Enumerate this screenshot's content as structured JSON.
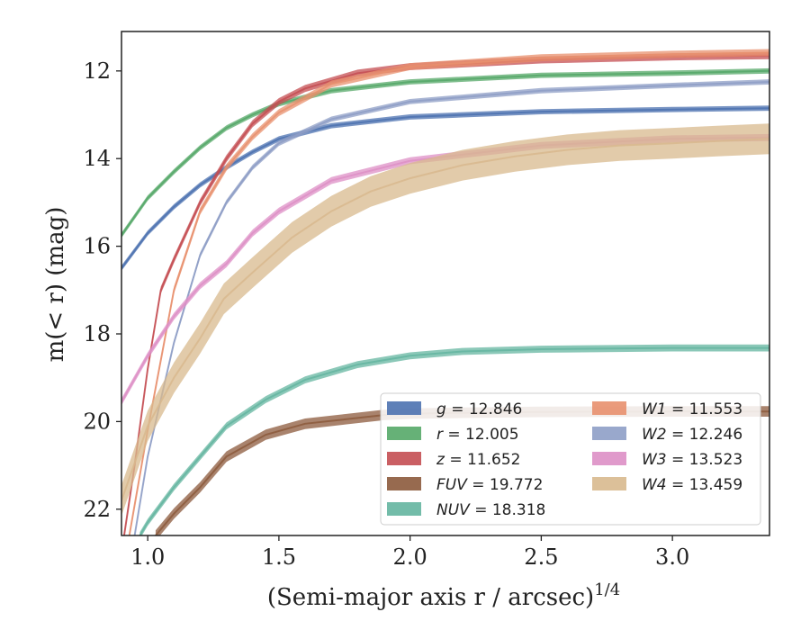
{
  "chart_data": {
    "type": "line",
    "title": "",
    "xlabel": "(Semi-major axis r / arcsec)",
    "xlabel_sup": "1/4",
    "ylabel": "m(< r) (mag)",
    "xlim": [
      0.9,
      3.37
    ],
    "ylim": [
      22.6,
      11.1
    ],
    "y_inverted": true,
    "xticks": [
      1.0,
      1.5,
      2.0,
      2.5,
      3.0
    ],
    "xtick_labels": [
      "1.0",
      "1.5",
      "2.0",
      "2.5",
      "3.0"
    ],
    "yticks": [
      12,
      14,
      16,
      18,
      20,
      22
    ],
    "ytick_labels": [
      "12",
      "14",
      "16",
      "18",
      "20",
      "22"
    ],
    "grid": false,
    "legend_placement": "lower-right",
    "series": [
      {
        "name": "g",
        "label_value": "12.846",
        "color": "#4c72b0",
        "band_width": 0.06,
        "x": [
          0.9,
          1.0,
          1.1,
          1.2,
          1.3,
          1.4,
          1.5,
          1.7,
          2.0,
          2.5,
          3.0,
          3.37
        ],
        "y": [
          16.5,
          15.7,
          15.1,
          14.6,
          14.2,
          13.85,
          13.55,
          13.25,
          13.05,
          12.93,
          12.88,
          12.85
        ]
      },
      {
        "name": "r",
        "label_value": "12.005",
        "color": "#55a868",
        "band_width": 0.06,
        "x": [
          0.9,
          1.0,
          1.1,
          1.2,
          1.3,
          1.4,
          1.5,
          1.7,
          2.0,
          2.5,
          3.0,
          3.37
        ],
        "y": [
          15.75,
          14.9,
          14.3,
          13.75,
          13.3,
          13.0,
          12.75,
          12.45,
          12.25,
          12.1,
          12.05,
          12.0
        ]
      },
      {
        "name": "z",
        "label_value": "11.652",
        "color": "#c44e52",
        "band_width": 0.08,
        "x": [
          0.9,
          0.95,
          1.0,
          1.05,
          1.1,
          1.2,
          1.3,
          1.4,
          1.5,
          1.6,
          1.8,
          2.0,
          2.5,
          3.0,
          3.37
        ],
        "y": [
          23.0,
          21.0,
          18.8,
          17.0,
          16.3,
          15.0,
          14.0,
          13.2,
          12.7,
          12.4,
          12.05,
          11.9,
          11.75,
          11.68,
          11.65
        ]
      },
      {
        "name": "FUV",
        "label_value": "19.772",
        "color": "#8c5a3c",
        "band_width": 0.12,
        "x": [
          1.03,
          1.1,
          1.2,
          1.3,
          1.45,
          1.6,
          1.75,
          1.9,
          2.0,
          2.2,
          2.5,
          3.0,
          3.37
        ],
        "y": [
          22.6,
          22.1,
          21.5,
          20.8,
          20.3,
          20.05,
          19.95,
          19.85,
          19.82,
          19.8,
          19.78,
          19.77,
          19.77
        ]
      },
      {
        "name": "NUV",
        "label_value": "18.318",
        "color": "#64b5a0",
        "band_width": 0.08,
        "x": [
          0.97,
          1.0,
          1.1,
          1.2,
          1.3,
          1.45,
          1.6,
          1.8,
          2.0,
          2.2,
          2.5,
          3.0,
          3.37
        ],
        "y": [
          22.6,
          22.3,
          21.5,
          20.8,
          20.1,
          19.5,
          19.05,
          18.7,
          18.5,
          18.4,
          18.35,
          18.32,
          18.32
        ]
      },
      {
        "name": "W1",
        "label_value": "11.553",
        "color": "#e8906e",
        "band_width": 0.08,
        "x": [
          0.93,
          1.0,
          1.1,
          1.2,
          1.3,
          1.4,
          1.5,
          1.7,
          2.0,
          2.5,
          3.0,
          3.37
        ],
        "y": [
          22.6,
          20.2,
          17.0,
          15.2,
          14.2,
          13.5,
          12.95,
          12.3,
          11.9,
          11.7,
          11.62,
          11.58
        ]
      },
      {
        "name": "W2",
        "label_value": "12.246",
        "color": "#8e9ec6",
        "band_width": 0.06,
        "x": [
          0.95,
          1.0,
          1.1,
          1.2,
          1.3,
          1.4,
          1.5,
          1.7,
          2.0,
          2.5,
          3.0,
          3.37
        ],
        "y": [
          22.6,
          20.8,
          18.2,
          16.2,
          15.0,
          14.2,
          13.65,
          13.1,
          12.7,
          12.45,
          12.33,
          12.25
        ]
      },
      {
        "name": "W3",
        "label_value": "13.523",
        "color": "#dd8fc5",
        "band_width": 0.08,
        "x": [
          0.9,
          1.0,
          1.1,
          1.2,
          1.3,
          1.4,
          1.5,
          1.7,
          2.0,
          2.5,
          3.0,
          3.37
        ],
        "y": [
          19.55,
          18.5,
          17.6,
          16.9,
          16.4,
          15.7,
          15.2,
          14.5,
          14.05,
          13.7,
          13.55,
          13.52
        ]
      },
      {
        "name": "W4",
        "label_value": "13.459",
        "color": "#d8b98e",
        "band_width": 0.35,
        "x": [
          0.9,
          1.0,
          1.1,
          1.2,
          1.29,
          1.4,
          1.55,
          1.7,
          1.85,
          2.0,
          2.2,
          2.4,
          2.6,
          2.8,
          3.0,
          3.17,
          3.37
        ],
        "y": [
          21.8,
          20.1,
          19.0,
          18.1,
          17.2,
          16.6,
          15.8,
          15.2,
          14.75,
          14.45,
          14.15,
          13.95,
          13.8,
          13.7,
          13.65,
          13.6,
          13.55
        ]
      }
    ]
  }
}
